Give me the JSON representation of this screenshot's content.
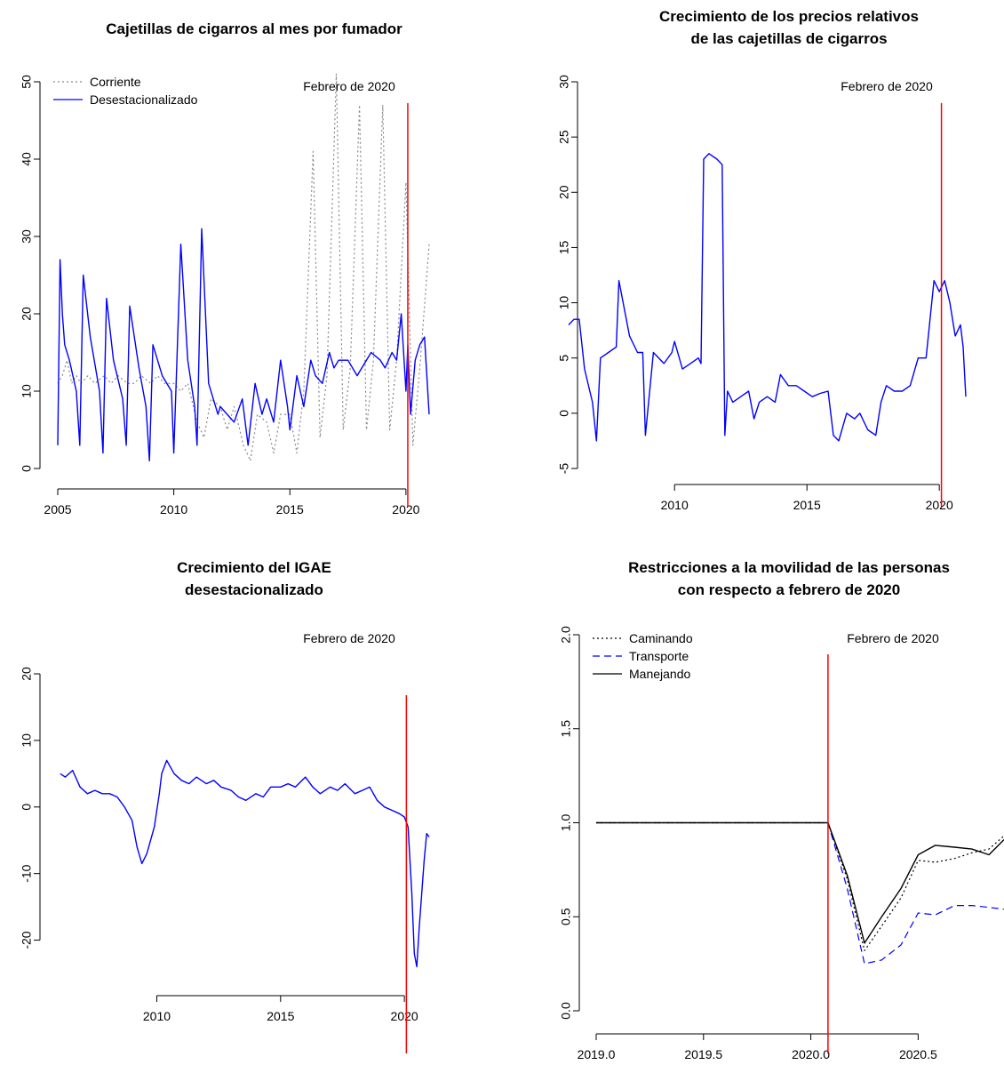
{
  "chart_data": [
    {
      "type": "line",
      "title": "Cajetillas de cigarros al mes por fumador",
      "xlim": [
        2005,
        2021
      ],
      "ylim": [
        0,
        50
      ],
      "xticks": [
        2005,
        2010,
        2015,
        2020
      ],
      "yticks": [
        0,
        10,
        20,
        30,
        40,
        50
      ],
      "xtick_labels": [
        "2005",
        "2010",
        "2015",
        "2020"
      ],
      "ytick_labels": [
        "0",
        "10",
        "20",
        "30",
        "40",
        "50"
      ],
      "vline": {
        "x": 2020.08,
        "color": "#ff0000"
      },
      "annotation": "Febrero de 2020",
      "legend_position": "top-left",
      "series": [
        {
          "name": "Corriente",
          "color": "#888888",
          "dash": "dotted",
          "x": [
            2005,
            2005.2,
            2005.4,
            2005.6,
            2005.8,
            2006,
            2006.3,
            2006.6,
            2007,
            2007.3,
            2007.6,
            2008,
            2008.3,
            2008.6,
            2009,
            2009.3,
            2009.6,
            2010,
            2010.3,
            2010.6,
            2011,
            2011.3,
            2011.6,
            2012,
            2012.3,
            2012.6,
            2013,
            2013.3,
            2013.6,
            2014,
            2014.3,
            2014.6,
            2015,
            2015.3,
            2015.6,
            2016,
            2016.3,
            2016.6,
            2017,
            2017.3,
            2017.6,
            2018,
            2018.3,
            2018.6,
            2019,
            2019.3,
            2019.6,
            2020,
            2020.3,
            2020.6,
            2021
          ],
          "y": [
            11,
            12,
            14,
            11,
            12,
            11,
            12,
            11,
            12,
            11,
            12,
            11,
            11,
            12,
            11,
            12,
            11,
            11,
            10,
            11,
            6,
            4,
            9,
            8,
            5,
            8,
            3,
            1,
            7,
            6,
            2,
            7,
            7,
            2,
            10,
            41,
            4,
            12,
            51,
            5,
            13,
            47,
            5,
            14,
            47,
            5,
            14,
            37,
            3,
            13,
            29
          ]
        },
        {
          "name": "Desestacionalizado",
          "color": "#0000ff",
          "dash": "solid",
          "x": [
            2005,
            2005.1,
            2005.2,
            2005.3,
            2005.5,
            2005.8,
            2005.95,
            2006.1,
            2006.4,
            2006.8,
            2006.95,
            2007.1,
            2007.4,
            2007.8,
            2007.95,
            2008.1,
            2008.5,
            2008.8,
            2008.95,
            2009.1,
            2009.5,
            2009.9,
            2010,
            2010.3,
            2010.6,
            2010.9,
            2011,
            2011.2,
            2011.5,
            2011.9,
            2012,
            2012.3,
            2012.6,
            2012.95,
            2013.2,
            2013.5,
            2013.8,
            2014,
            2014.3,
            2014.6,
            2014.9,
            2015,
            2015.3,
            2015.6,
            2015.9,
            2016.1,
            2016.4,
            2016.7,
            2016.9,
            2017.1,
            2017.5,
            2017.9,
            2018.1,
            2018.5,
            2018.9,
            2019.1,
            2019.4,
            2019.6,
            2019.8,
            2020,
            2020.08,
            2020.2,
            2020.4,
            2020.6,
            2020.8,
            2021
          ],
          "y": [
            3,
            27,
            20,
            16,
            14,
            10,
            3,
            25,
            17,
            10,
            2,
            22,
            14,
            9,
            3,
            21,
            13,
            8,
            1,
            16,
            12,
            10,
            2,
            29,
            14,
            8,
            3,
            31,
            11,
            7,
            8,
            7,
            6,
            9,
            3,
            11,
            7,
            9,
            6,
            14,
            8,
            5,
            12,
            8,
            14,
            12,
            11,
            15,
            13,
            14,
            14,
            12,
            13,
            15,
            14,
            13,
            15,
            14,
            20,
            10,
            16,
            7,
            14,
            16,
            17,
            7
          ]
        }
      ]
    },
    {
      "type": "line",
      "title": "Crecimiento de los precios relativos\nde las cajetillas de cigarros",
      "xlim": [
        2006,
        2021
      ],
      "ylim": [
        -5,
        30
      ],
      "xticks": [
        2010,
        2015,
        2020
      ],
      "yticks": [
        -5,
        0,
        5,
        10,
        15,
        20,
        25,
        30
      ],
      "xtick_labels": [
        "2010",
        "2015",
        "2020"
      ],
      "ytick_labels": [
        "-5",
        "0",
        "5",
        "10",
        "15",
        "20",
        "25",
        "30"
      ],
      "vline": {
        "x": 2020.08,
        "color": "#ff0000"
      },
      "annotation": "Febrero de 2020",
      "series": [
        {
          "name": "",
          "color": "#0000ff",
          "dash": "solid",
          "x": [
            2006,
            2006.2,
            2006.4,
            2006.6,
            2006.9,
            2007.05,
            2007.2,
            2007.5,
            2007.8,
            2007.9,
            2008.3,
            2008.6,
            2008.8,
            2008.9,
            2009.2,
            2009.6,
            2009.9,
            2010,
            2010.3,
            2010.6,
            2010.9,
            2011,
            2011.1,
            2011.3,
            2011.6,
            2011.8,
            2011.9,
            2012,
            2012.2,
            2012.5,
            2012.8,
            2013,
            2013.2,
            2013.5,
            2013.8,
            2014,
            2014.3,
            2014.6,
            2014.9,
            2015.2,
            2015.5,
            2015.8,
            2016,
            2016.2,
            2016.5,
            2016.8,
            2017,
            2017.3,
            2017.6,
            2017.8,
            2018,
            2018.3,
            2018.6,
            2018.9,
            2019.2,
            2019.5,
            2019.8,
            2020,
            2020.2,
            2020.4,
            2020.6,
            2020.8,
            2020.9,
            2021
          ],
          "y": [
            8,
            8.5,
            8.5,
            4,
            1,
            -2.5,
            5,
            5.5,
            6,
            12,
            7,
            5.5,
            5.5,
            -2,
            5.5,
            4.5,
            5.5,
            6.5,
            4,
            4.5,
            5,
            4.5,
            23,
            23.5,
            23,
            22.5,
            -2,
            2,
            1,
            1.5,
            2,
            -0.5,
            1,
            1.5,
            1,
            3.5,
            2.5,
            2.5,
            2,
            1.5,
            1.8,
            2,
            -2,
            -2.5,
            0,
            -0.5,
            0,
            -1.5,
            -2,
            1,
            2.5,
            2,
            2,
            2.5,
            5,
            5,
            12,
            11,
            12,
            10,
            7,
            8,
            6,
            1.5
          ]
        }
      ]
    },
    {
      "type": "line",
      "title": "Crecimiento del IGAE\ndesestacionalizado",
      "xlim": [
        2006,
        2021
      ],
      "ylim": [
        -25,
        20
      ],
      "xticks": [
        2010,
        2015,
        2020
      ],
      "yticks": [
        -20,
        -10,
        0,
        10,
        20
      ],
      "xtick_labels": [
        "2010",
        "2015",
        "2020"
      ],
      "ytick_labels": [
        "-20",
        "-10",
        "0",
        "10",
        "20"
      ],
      "vline": {
        "x": 2020.08,
        "color": "#ff0000"
      },
      "annotation": "Febrero de 2020",
      "series": [
        {
          "name": "",
          "color": "#0000ff",
          "dash": "solid",
          "x": [
            2006.1,
            2006.3,
            2006.6,
            2006.9,
            2007.2,
            2007.5,
            2007.8,
            2008.1,
            2008.4,
            2008.7,
            2009,
            2009.2,
            2009.4,
            2009.6,
            2009.9,
            2010.1,
            2010.2,
            2010.4,
            2010.7,
            2011,
            2011.3,
            2011.6,
            2012,
            2012.3,
            2012.6,
            2013,
            2013.3,
            2013.6,
            2014,
            2014.3,
            2014.6,
            2015,
            2015.3,
            2015.6,
            2016,
            2016.3,
            2016.6,
            2017,
            2017.3,
            2017.6,
            2018,
            2018.3,
            2018.6,
            2018.9,
            2019.2,
            2019.5,
            2019.8,
            2020,
            2020.15,
            2020.3,
            2020.4,
            2020.5,
            2020.6,
            2020.8,
            2020.9,
            2021
          ],
          "y": [
            5,
            4.5,
            5.5,
            3,
            2,
            2.5,
            2,
            2,
            1.5,
            0,
            -2,
            -6,
            -8.5,
            -7,
            -3,
            2,
            5,
            7,
            5,
            4,
            3.5,
            4.5,
            3.5,
            4,
            3,
            2.5,
            1.5,
            1,
            2,
            1.5,
            3,
            3,
            3.5,
            3,
            4.5,
            3,
            2,
            3,
            2.5,
            3.5,
            2,
            2.5,
            3,
            1,
            0,
            -0.5,
            -1,
            -1.5,
            -3,
            -13,
            -22,
            -24,
            -18,
            -8,
            -4,
            -4.5
          ]
        }
      ]
    },
    {
      "type": "line",
      "title": "Restricciones a la movilidad de las personas\ncon respecto a febrero de 2020",
      "xlim": [
        2019.0,
        2020.9
      ],
      "ylim": [
        0,
        2.0
      ],
      "xticks": [
        2019.0,
        2019.5,
        2020.0,
        2020.5
      ],
      "yticks": [
        0,
        0.5,
        1.0,
        1.5,
        2.0
      ],
      "xtick_labels": [
        "2019.0",
        "2019.5",
        "2020.0",
        "2020.5"
      ],
      "ytick_labels": [
        "0.0",
        "0.5",
        "1.0",
        "1.5",
        "2.0"
      ],
      "vline": {
        "x": 2020.08,
        "color": "#ff0000"
      },
      "annotation": "Febrero de 2020",
      "legend_position": "top-left",
      "series": [
        {
          "name": "Caminando",
          "color": "#000000",
          "dash": "dotted",
          "x": [
            2019.0,
            2020.08,
            2020.17,
            2020.25,
            2020.33,
            2020.42,
            2020.5,
            2020.58,
            2020.67,
            2020.75,
            2020.83,
            2020.9
          ],
          "y": [
            1.0,
            1.0,
            0.7,
            0.32,
            0.45,
            0.6,
            0.8,
            0.79,
            0.81,
            0.84,
            0.86,
            0.93
          ]
        },
        {
          "name": "Transporte",
          "color": "#0000ff",
          "dash": "dashed",
          "x": [
            2019.0,
            2020.08,
            2020.17,
            2020.25,
            2020.33,
            2020.42,
            2020.5,
            2020.58,
            2020.67,
            2020.75,
            2020.83,
            2020.9
          ],
          "y": [
            1.0,
            1.0,
            0.65,
            0.25,
            0.27,
            0.35,
            0.52,
            0.51,
            0.56,
            0.56,
            0.55,
            0.54
          ]
        },
        {
          "name": "Manejando",
          "color": "#000000",
          "dash": "solid",
          "x": [
            2019.0,
            2020.08,
            2020.17,
            2020.25,
            2020.33,
            2020.42,
            2020.5,
            2020.58,
            2020.67,
            2020.75,
            2020.83,
            2020.9
          ],
          "y": [
            1.0,
            1.0,
            0.72,
            0.36,
            0.5,
            0.65,
            0.83,
            0.88,
            0.87,
            0.86,
            0.83,
            0.91
          ]
        }
      ]
    }
  ]
}
